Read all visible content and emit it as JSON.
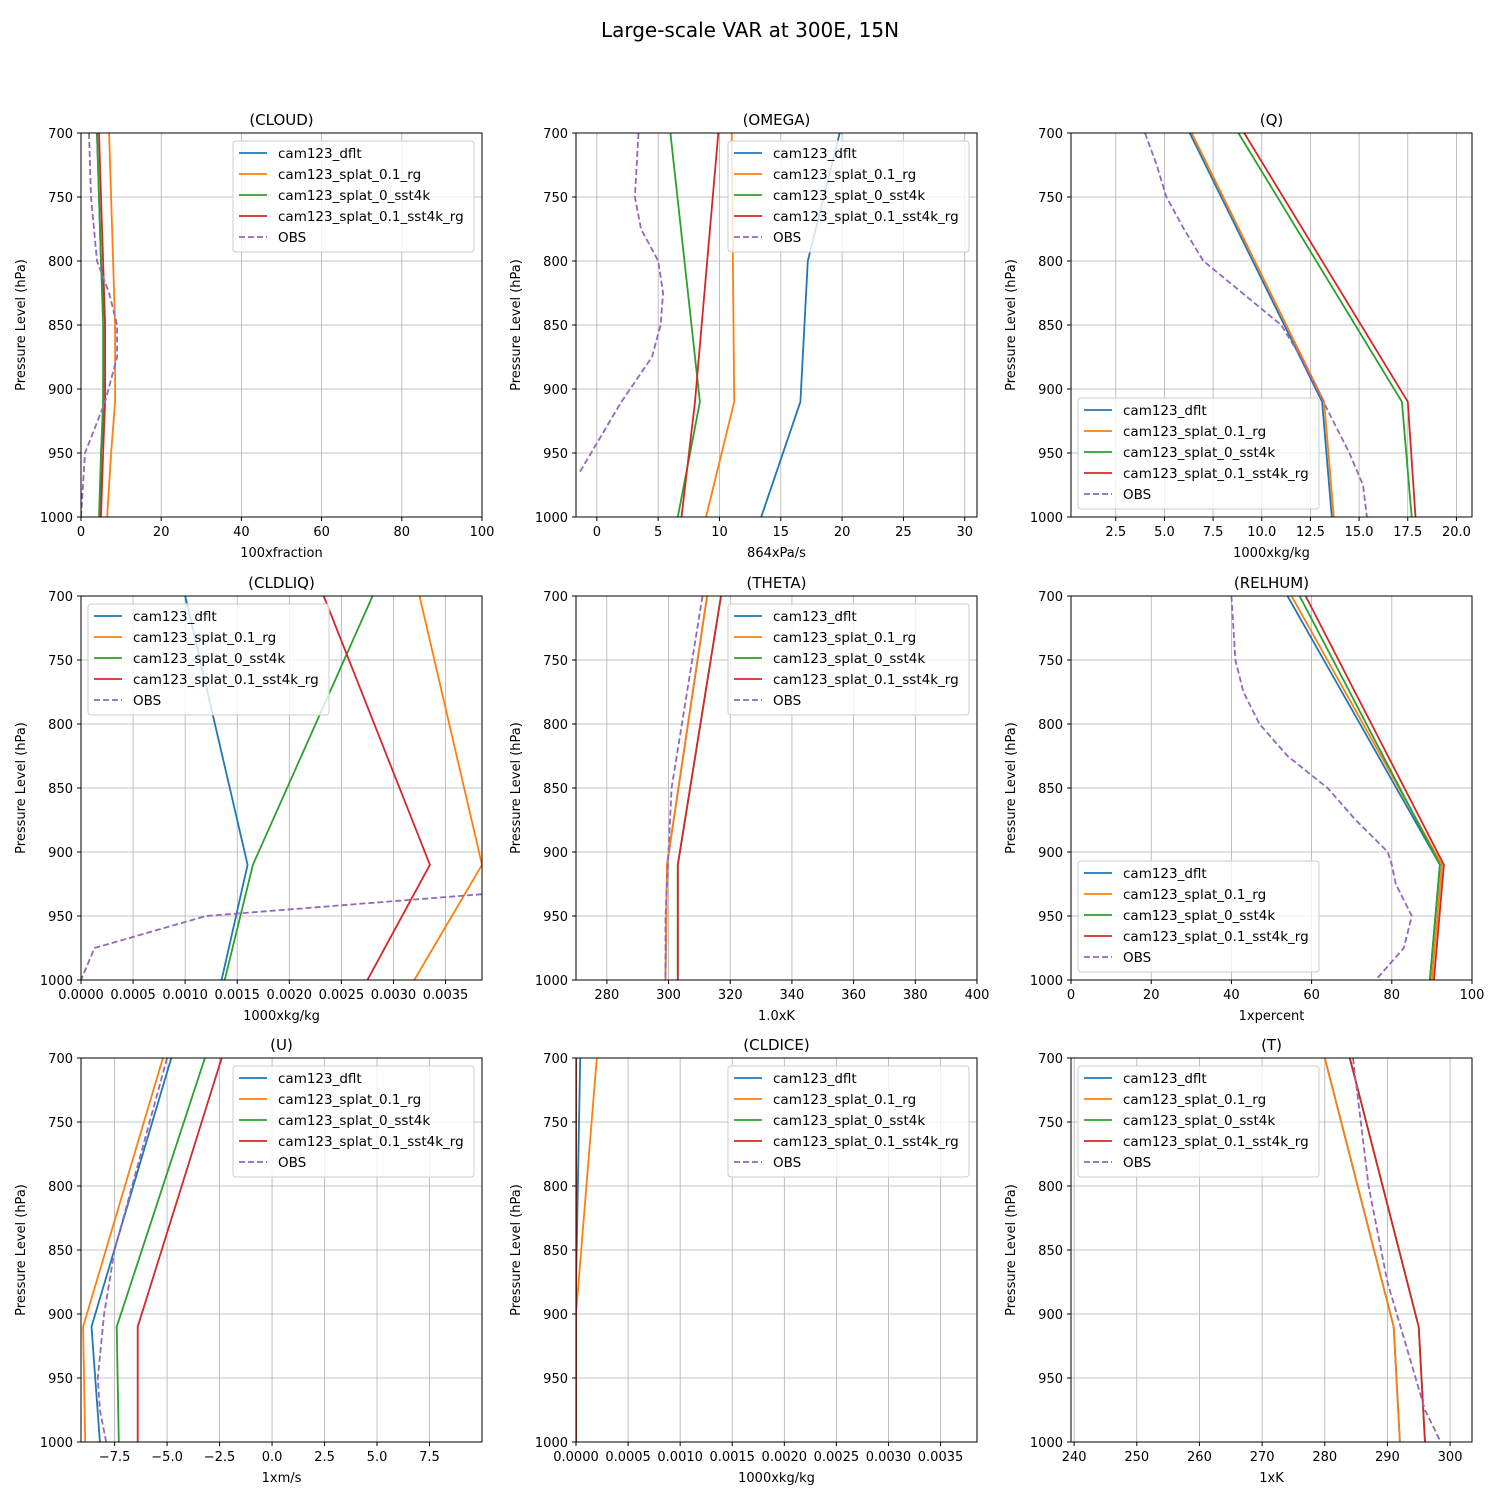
{
  "suptitle": "Large-scale VAR at 300E, 15N",
  "colors": {
    "cam123_dflt": "#1f77b4",
    "cam123_splat_0.1_rg": "#ff7f0e",
    "cam123_splat_0_sst4k": "#2ca02c",
    "cam123_splat_0.1_sst4k_rg": "#d62728",
    "OBS": "#9467bd"
  },
  "chart_data": [
    {
      "type": "line",
      "title": "(CLOUD)",
      "xlabel": "100xfraction",
      "ylabel": "Pressure Level (hPa)",
      "xlim": [
        0,
        100
      ],
      "ylim": [
        1000,
        700
      ],
      "y_inverted": true,
      "xticks": [
        "0",
        "20",
        "40",
        "60",
        "80",
        "100"
      ],
      "xtick_values": [
        0,
        20,
        40,
        60,
        80,
        100
      ],
      "yticks": [
        700,
        750,
        800,
        850,
        900,
        950,
        1000
      ],
      "grid": true,
      "legend_position": "upper right",
      "series": [
        {
          "name": "cam123_dflt",
          "style": "solid",
          "x": [
            4,
            4.5,
            5,
            6,
            6,
            5,
            5
          ],
          "y": [
            700,
            750,
            800,
            850,
            910,
            950,
            1000
          ]
        },
        {
          "name": "cam123_splat_0.1_rg",
          "style": "solid",
          "x": [
            7,
            7.5,
            8,
            8.5,
            8.5,
            7.5,
            6.5
          ],
          "y": [
            700,
            750,
            800,
            850,
            910,
            950,
            1000
          ]
        },
        {
          "name": "cam123_splat_0_sst4k",
          "style": "solid",
          "x": [
            4,
            4.5,
            5,
            5.5,
            5.5,
            5,
            4.5
          ],
          "y": [
            700,
            750,
            800,
            850,
            910,
            950,
            1000
          ]
        },
        {
          "name": "cam123_splat_0.1_sst4k_rg",
          "style": "solid",
          "x": [
            4.5,
            5,
            5.5,
            6,
            6,
            5.5,
            5
          ],
          "y": [
            700,
            750,
            800,
            850,
            910,
            950,
            1000
          ]
        },
        {
          "name": "OBS",
          "style": "dashed",
          "x": [
            2,
            2.5,
            4,
            7,
            9,
            9,
            6,
            1,
            0
          ],
          "y": [
            700,
            750,
            800,
            825,
            850,
            875,
            910,
            950,
            1000
          ]
        }
      ]
    },
    {
      "type": "line",
      "title": "(OMEGA)",
      "xlabel": "864xPa/s",
      "ylabel": "Pressure Level (hPa)",
      "xlim": [
        -1.7,
        31
      ],
      "ylim": [
        1000,
        700
      ],
      "y_inverted": true,
      "xticks": [
        "0",
        "5",
        "10",
        "15",
        "20",
        "25",
        "30"
      ],
      "xtick_values": [
        0,
        5,
        10,
        15,
        20,
        25,
        30
      ],
      "yticks": [
        700,
        750,
        800,
        850,
        900,
        950,
        1000
      ],
      "grid": true,
      "legend_position": "upper right",
      "series": [
        {
          "name": "cam123_dflt",
          "style": "solid",
          "x": [
            19.8,
            17.2,
            16.6,
            13.4
          ],
          "y": [
            700,
            800,
            910,
            1000
          ]
        },
        {
          "name": "cam123_splat_0.1_rg",
          "style": "solid",
          "x": [
            11.0,
            11.2,
            8.9
          ],
          "y": [
            700,
            910,
            1000
          ]
        },
        {
          "name": "cam123_splat_0_sst4k",
          "style": "solid",
          "x": [
            6.0,
            8.4,
            6.6
          ],
          "y": [
            700,
            910,
            1000
          ]
        },
        {
          "name": "cam123_splat_0.1_sst4k_rg",
          "style": "solid",
          "x": [
            9.9,
            8.0,
            6.9
          ],
          "y": [
            700,
            910,
            1000
          ]
        },
        {
          "name": "OBS",
          "style": "dashed",
          "x": [
            3.4,
            3.1,
            3.6,
            5.0,
            5.4,
            5.2,
            4.5,
            2.0,
            -1.4
          ],
          "y": [
            700,
            750,
            775,
            800,
            825,
            850,
            875,
            910,
            965
          ]
        }
      ]
    },
    {
      "type": "line",
      "title": "(Q)",
      "xlabel": "1000xkg/kg",
      "ylabel": "Pressure Level (hPa)",
      "xlim": [
        0.2,
        20.8
      ],
      "ylim": [
        1000,
        700
      ],
      "y_inverted": true,
      "xticks": [
        "2.5",
        "5.0",
        "7.5",
        "10.0",
        "12.5",
        "15.0",
        "17.5",
        "20.0"
      ],
      "xtick_values": [
        2.5,
        5,
        7.5,
        10,
        12.5,
        15,
        17.5,
        20
      ],
      "yticks": [
        700,
        750,
        800,
        850,
        900,
        950,
        1000
      ],
      "grid": true,
      "legend_position": "lower left",
      "series": [
        {
          "name": "cam123_dflt",
          "style": "solid",
          "x": [
            6.3,
            13.1,
            13.6
          ],
          "y": [
            700,
            910,
            1000
          ]
        },
        {
          "name": "cam123_splat_0.1_rg",
          "style": "solid",
          "x": [
            6.4,
            13.2,
            13.7
          ],
          "y": [
            700,
            910,
            1000
          ]
        },
        {
          "name": "cam123_splat_0_sst4k",
          "style": "solid",
          "x": [
            8.8,
            17.2,
            17.7
          ],
          "y": [
            700,
            910,
            1000
          ]
        },
        {
          "name": "cam123_splat_0.1_sst4k_rg",
          "style": "solid",
          "x": [
            9.1,
            17.5,
            17.9
          ],
          "y": [
            700,
            910,
            1000
          ]
        },
        {
          "name": "OBS",
          "style": "dashed",
          "x": [
            4.0,
            4.6,
            5.1,
            6.0,
            7.0,
            9.0,
            11.0,
            12.0,
            14.5,
            15.2,
            15.4
          ],
          "y": [
            700,
            725,
            750,
            775,
            800,
            825,
            850,
            875,
            950,
            975,
            1000
          ]
        }
      ]
    },
    {
      "type": "line",
      "title": "(CLDLIQ)",
      "xlabel": "1000xkg/kg",
      "ylabel": "Pressure Level (hPa)",
      "xlim": [
        0,
        0.00385
      ],
      "ylim": [
        1000,
        700
      ],
      "y_inverted": true,
      "xticks": [
        "0.0000",
        "0.0005",
        "0.0010",
        "0.0015",
        "0.0020",
        "0.0025",
        "0.0030",
        "0.0035"
      ],
      "xtick_values": [
        0,
        0.0005,
        0.001,
        0.0015,
        0.002,
        0.0025,
        0.003,
        0.0035
      ],
      "yticks": [
        700,
        750,
        800,
        850,
        900,
        950,
        1000
      ],
      "grid": true,
      "legend_position": "upper left",
      "series": [
        {
          "name": "cam123_dflt",
          "style": "solid",
          "x": [
            0.001,
            0.0016,
            0.00135
          ],
          "y": [
            700,
            910,
            1000
          ]
        },
        {
          "name": "cam123_splat_0.1_rg",
          "style": "solid",
          "x": [
            0.00325,
            0.00385,
            0.0032
          ],
          "y": [
            700,
            910,
            1000
          ]
        },
        {
          "name": "cam123_splat_0_sst4k",
          "style": "solid",
          "x": [
            0.0028,
            0.00165,
            0.00138
          ],
          "y": [
            700,
            910,
            1000
          ]
        },
        {
          "name": "cam123_splat_0.1_sst4k_rg",
          "style": "solid",
          "x": [
            0.00233,
            0.00335,
            0.00275
          ],
          "y": [
            700,
            910,
            1000
          ]
        },
        {
          "name": "OBS",
          "style": "dashed",
          "x": [
            0.00385,
            0.0012,
            0.00013,
            0
          ],
          "y": [
            933,
            950,
            975,
            1000
          ]
        }
      ]
    },
    {
      "type": "line",
      "title": "(THETA)",
      "xlabel": "1.0xK",
      "ylabel": "Pressure Level (hPa)",
      "xlim": [
        270,
        400
      ],
      "ylim": [
        1000,
        700
      ],
      "y_inverted": true,
      "xticks": [
        "280",
        "300",
        "320",
        "340",
        "360",
        "380",
        "400"
      ],
      "xtick_values": [
        280,
        300,
        320,
        340,
        360,
        380,
        400
      ],
      "yticks": [
        700,
        750,
        800,
        850,
        900,
        950,
        1000
      ],
      "grid": true,
      "legend_position": "upper right",
      "series": [
        {
          "name": "cam123_dflt",
          "style": "solid",
          "x": [
            312.5,
            299.5,
            299
          ],
          "y": [
            700,
            910,
            1000
          ]
        },
        {
          "name": "cam123_splat_0.1_rg",
          "style": "solid",
          "x": [
            312.5,
            299.5,
            299
          ],
          "y": [
            700,
            910,
            1000
          ]
        },
        {
          "name": "cam123_splat_0_sst4k",
          "style": "solid",
          "x": [
            317,
            303,
            303
          ],
          "y": [
            700,
            910,
            1000
          ]
        },
        {
          "name": "cam123_splat_0.1_sst4k_rg",
          "style": "solid",
          "x": [
            317,
            303,
            303
          ],
          "y": [
            700,
            910,
            1000
          ]
        },
        {
          "name": "OBS",
          "style": "dashed",
          "x": [
            311,
            301,
            300,
            299,
            299
          ],
          "y": [
            700,
            850,
            900,
            950,
            1000
          ]
        }
      ]
    },
    {
      "type": "line",
      "title": "(RELHUM)",
      "xlabel": "1xpercent",
      "ylabel": "Pressure Level (hPa)",
      "xlim": [
        0,
        100
      ],
      "ylim": [
        1000,
        700
      ],
      "y_inverted": true,
      "xticks": [
        "0",
        "20",
        "40",
        "60",
        "80",
        "100"
      ],
      "xtick_values": [
        0,
        20,
        40,
        60,
        80,
        100
      ],
      "yticks": [
        700,
        750,
        800,
        850,
        900,
        950,
        1000
      ],
      "grid": true,
      "legend_position": "lower left",
      "series": [
        {
          "name": "cam123_dflt",
          "style": "solid",
          "x": [
            54,
            92,
            89.5
          ],
          "y": [
            700,
            910,
            1000
          ]
        },
        {
          "name": "cam123_splat_0.1_rg",
          "style": "solid",
          "x": [
            55,
            92.5,
            90
          ],
          "y": [
            700,
            910,
            1000
          ]
        },
        {
          "name": "cam123_splat_0_sst4k",
          "style": "solid",
          "x": [
            57,
            92,
            89.5
          ],
          "y": [
            700,
            910,
            1000
          ]
        },
        {
          "name": "cam123_splat_0.1_sst4k_rg",
          "style": "solid",
          "x": [
            58.5,
            93,
            90.5
          ],
          "y": [
            700,
            910,
            1000
          ]
        },
        {
          "name": "OBS",
          "style": "dashed",
          "x": [
            40,
            40.5,
            41,
            43,
            47,
            54,
            64,
            71,
            79,
            80,
            81,
            85,
            83,
            76
          ],
          "y": [
            700,
            725,
            750,
            775,
            800,
            825,
            850,
            875,
            900,
            910,
            925,
            950,
            975,
            1000
          ]
        }
      ]
    },
    {
      "type": "line",
      "title": "(U)",
      "xlabel": "1xm/s",
      "ylabel": "Pressure Level (hPa)",
      "xlim": [
        -9.1,
        10
      ],
      "ylim": [
        1000,
        700
      ],
      "y_inverted": true,
      "xticks": [
        "−7.5",
        "−5.0",
        "−2.5",
        "0.0",
        "2.5",
        "5.0",
        "7.5"
      ],
      "xtick_values": [
        -7.5,
        -5,
        -2.5,
        0,
        2.5,
        5,
        7.5
      ],
      "yticks": [
        700,
        750,
        800,
        850,
        900,
        950,
        1000
      ],
      "grid": true,
      "legend_position": "upper right",
      "series": [
        {
          "name": "cam123_dflt",
          "style": "solid",
          "x": [
            -4.8,
            -8.6,
            -8.2
          ],
          "y": [
            700,
            910,
            1000
          ]
        },
        {
          "name": "cam123_splat_0.1_rg",
          "style": "solid",
          "x": [
            -5.2,
            -9.0,
            -8.9
          ],
          "y": [
            700,
            910,
            1000
          ]
        },
        {
          "name": "cam123_splat_0_sst4k",
          "style": "solid",
          "x": [
            -3.2,
            -7.4,
            -7.3
          ],
          "y": [
            700,
            910,
            1000
          ]
        },
        {
          "name": "cam123_splat_0.1_sst4k_rg",
          "style": "solid",
          "x": [
            -2.4,
            -6.4,
            -6.4
          ],
          "y": [
            700,
            910,
            1000
          ]
        },
        {
          "name": "OBS",
          "style": "dashed",
          "x": [
            -5.0,
            -7.5,
            -8.0,
            -8.3,
            -8.2,
            -7.9
          ],
          "y": [
            700,
            850,
            900,
            950,
            975,
            1000
          ]
        }
      ]
    },
    {
      "type": "line",
      "title": "(CLDICE)",
      "xlabel": "1000xkg/kg",
      "ylabel": "Pressure Level (hPa)",
      "xlim": [
        0,
        0.00385
      ],
      "ylim": [
        1000,
        700
      ],
      "y_inverted": true,
      "xticks": [
        "0.0000",
        "0.0005",
        "0.0010",
        "0.0015",
        "0.0020",
        "0.0025",
        "0.0030",
        "0.0035"
      ],
      "xtick_values": [
        0,
        0.0005,
        0.001,
        0.0015,
        0.002,
        0.0025,
        0.003,
        0.0035
      ],
      "yticks": [
        700,
        750,
        800,
        850,
        900,
        950,
        1000
      ],
      "grid": true,
      "legend_position": "upper right",
      "series": [
        {
          "name": "cam123_dflt",
          "style": "solid",
          "x": [
            4e-05,
            0,
            0
          ],
          "y": [
            700,
            880,
            1000
          ]
        },
        {
          "name": "cam123_splat_0.1_rg",
          "style": "solid",
          "x": [
            0.0002,
            0,
            0
          ],
          "y": [
            700,
            900,
            1000
          ]
        },
        {
          "name": "cam123_splat_0_sst4k",
          "style": "solid",
          "x": [
            0,
            0
          ],
          "y": [
            700,
            1000
          ]
        },
        {
          "name": "cam123_splat_0.1_sst4k_rg",
          "style": "solid",
          "x": [
            0,
            0
          ],
          "y": [
            700,
            1000
          ]
        },
        {
          "name": "OBS",
          "style": "dashed",
          "x": [],
          "y": []
        }
      ]
    },
    {
      "type": "line",
      "title": "(T)",
      "xlabel": "1xK",
      "ylabel": "Pressure Level (hPa)",
      "xlim": [
        239.5,
        303.5
      ],
      "ylim": [
        1000,
        700
      ],
      "y_inverted": true,
      "xticks": [
        "240",
        "250",
        "260",
        "270",
        "280",
        "290",
        "300"
      ],
      "xtick_values": [
        240,
        250,
        260,
        270,
        280,
        290,
        300
      ],
      "yticks": [
        700,
        750,
        800,
        850,
        900,
        950,
        1000
      ],
      "grid": true,
      "legend_position": "upper left",
      "series": [
        {
          "name": "cam123_dflt",
          "style": "solid",
          "x": [
            280,
            291,
            292
          ],
          "y": [
            700,
            910,
            1000
          ]
        },
        {
          "name": "cam123_splat_0.1_rg",
          "style": "solid",
          "x": [
            280,
            291,
            292
          ],
          "y": [
            700,
            910,
            1000
          ]
        },
        {
          "name": "cam123_splat_0_sst4k",
          "style": "solid",
          "x": [
            284,
            295,
            296
          ],
          "y": [
            700,
            910,
            1000
          ]
        },
        {
          "name": "cam123_splat_0.1_sst4k_rg",
          "style": "solid",
          "x": [
            284,
            295,
            296
          ],
          "y": [
            700,
            910,
            1000
          ]
        },
        {
          "name": "OBS",
          "style": "dashed",
          "x": [
            284.5,
            287,
            290,
            293,
            296,
            298.5
          ],
          "y": [
            700,
            800,
            875,
            925,
            975,
            1000
          ]
        }
      ]
    }
  ]
}
